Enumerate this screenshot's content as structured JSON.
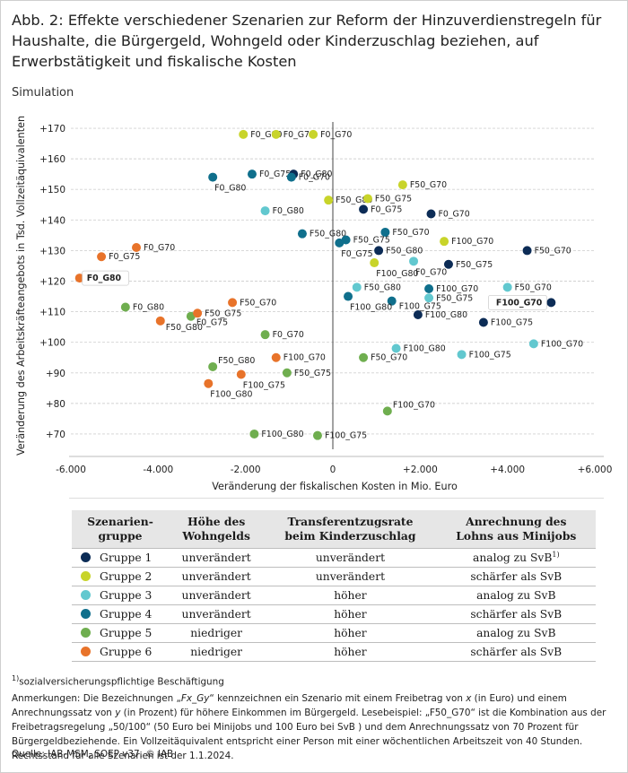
{
  "title": "Abb. 2: Effekte verschiedener Szenarien zur Reform der Hinzuverdienstregeln für Haushalte, die Bürgergeld, Wohngeld oder Kinderzuschlag beziehen, auf Erwerbstätigkeit und fiskalische Kosten",
  "subtitle": "Simulation",
  "chart_data": {
    "type": "scatter",
    "xlabel": "Veränderung der fiskalischen Kosten in Mio. Euro",
    "ylabel": "Veränderung des Arbeitskräfteangebots in Tsd. Vollzeitäquivalenten",
    "xlim": [
      -6000,
      6000
    ],
    "ylim": [
      65,
      175
    ],
    "x_ticks": [
      -6000,
      -4000,
      -2000,
      0,
      2000,
      4000,
      6000
    ],
    "x_tick_labels": [
      "-6.000",
      "-4.000",
      "-2.000",
      "0",
      "+2.000",
      "+4.000",
      "+6.000"
    ],
    "y_ticks": [
      70,
      80,
      90,
      100,
      110,
      120,
      130,
      140,
      150,
      160,
      170
    ],
    "y_tick_labels": [
      "+70",
      "+80",
      "+90",
      "+100",
      "+110",
      "+120",
      "+130",
      "+140",
      "+150",
      "+160",
      "+170"
    ],
    "group_colors": {
      "1": "#0c2c56",
      "2": "#c8d42a",
      "3": "#62c8cf",
      "4": "#0f6f8c",
      "5": "#6fae4f",
      "6": "#e8732a"
    },
    "points": [
      {
        "label": "F0_G80",
        "group": 1,
        "x": -900,
        "y": 155,
        "pos": "r",
        "box": false
      },
      {
        "label": "F0_G75",
        "group": 1,
        "x": 700,
        "y": 143.5,
        "pos": "r",
        "box": false
      },
      {
        "label": "F0_G70",
        "group": 1,
        "x": 2250,
        "y": 142,
        "pos": "r",
        "box": false
      },
      {
        "label": "F50_G70",
        "group": 1,
        "x": 4450,
        "y": 130,
        "pos": "r",
        "box": false
      },
      {
        "label": "F50_G75",
        "group": 1,
        "x": 2650,
        "y": 125.5,
        "pos": "r",
        "box": false
      },
      {
        "label": "F50_G80",
        "group": 1,
        "x": 1050,
        "y": 130,
        "pos": "r",
        "box": false
      },
      {
        "label": "F100_G70",
        "group": 1,
        "x": 5000,
        "y": 113,
        "pos": "l",
        "box": true
      },
      {
        "label": "F100_G75",
        "group": 1,
        "x": 3450,
        "y": 106.5,
        "pos": "r",
        "box": false
      },
      {
        "label": "F100_G80",
        "group": 1,
        "x": 1950,
        "y": 109,
        "pos": "r",
        "box": false
      },
      {
        "label": "F0_G80",
        "group": 2,
        "x": -2050,
        "y": 168,
        "pos": "r",
        "box": false
      },
      {
        "label": "F0_G75",
        "group": 2,
        "x": -1300,
        "y": 168,
        "pos": "r",
        "box": false
      },
      {
        "label": "F0_G70",
        "group": 2,
        "x": -450,
        "y": 168,
        "pos": "r",
        "box": false
      },
      {
        "label": "F50_G80",
        "group": 2,
        "x": -100,
        "y": 146.5,
        "pos": "r",
        "box": false
      },
      {
        "label": "F50_G75",
        "group": 2,
        "x": 800,
        "y": 147,
        "pos": "r",
        "box": false
      },
      {
        "label": "F50_G70",
        "group": 2,
        "x": 1600,
        "y": 151.5,
        "pos": "r",
        "box": false
      },
      {
        "label": "F100_G70",
        "group": 2,
        "x": 2550,
        "y": 133,
        "pos": "r",
        "box": false
      },
      {
        "label": "F100_G80",
        "group": 2,
        "x": 950,
        "y": 126,
        "pos": "b",
        "box": false
      },
      {
        "label": "F0_G70",
        "group": 3,
        "x": 1850,
        "y": 126.5,
        "pos": "b",
        "box": false
      },
      {
        "label": "F0_G80",
        "group": 3,
        "x": -1550,
        "y": 143,
        "pos": "r",
        "box": false
      },
      {
        "label": "F50_G75",
        "group": 3,
        "x": 2200,
        "y": 114.5,
        "pos": "r",
        "box": false
      },
      {
        "label": "F50_G70",
        "group": 3,
        "x": 4000,
        "y": 118,
        "pos": "r",
        "box": false
      },
      {
        "label": "F50_G80",
        "group": 3,
        "x": 550,
        "y": 118,
        "pos": "r",
        "box": false
      },
      {
        "label": "F100_G70",
        "group": 3,
        "x": 4600,
        "y": 99.5,
        "pos": "r",
        "box": false
      },
      {
        "label": "F100_G75",
        "group": 3,
        "x": 2950,
        "y": 96,
        "pos": "r",
        "box": false
      },
      {
        "label": "F100_G80",
        "group": 3,
        "x": 1450,
        "y": 98,
        "pos": "r",
        "box": false
      },
      {
        "label": "F0_G75",
        "group": 4,
        "x": -1850,
        "y": 155,
        "pos": "r",
        "box": false
      },
      {
        "label": "F0_G80",
        "group": 4,
        "x": -2750,
        "y": 154,
        "pos": "b",
        "box": false
      },
      {
        "label": "F0_G70",
        "group": 4,
        "x": -950,
        "y": 154,
        "pos": "r",
        "box": false
      },
      {
        "label": "F50_G80",
        "group": 4,
        "x": -700,
        "y": 135.5,
        "pos": "r",
        "box": false
      },
      {
        "label": "F50_G75",
        "group": 4,
        "x": 300,
        "y": 133.5,
        "pos": "r",
        "box": false
      },
      {
        "label": "F50_G70",
        "group": 4,
        "x": 1200,
        "y": 136,
        "pos": "r",
        "box": false
      },
      {
        "label": "F0_G75",
        "group": 4,
        "x": 150,
        "y": 132.5,
        "pos": "b",
        "box": false
      },
      {
        "label": "F100_G70",
        "group": 4,
        "x": 2200,
        "y": 117.5,
        "pos": "r",
        "box": false
      },
      {
        "label": "F100_G75",
        "group": 4,
        "x": 1350,
        "y": 113.5,
        "pos": "rb",
        "box": false
      },
      {
        "label": "F100_G80",
        "group": 4,
        "x": 350,
        "y": 115,
        "pos": "b",
        "box": false
      },
      {
        "label": "F0_G80",
        "group": 5,
        "x": -4750,
        "y": 111.5,
        "pos": "r",
        "box": false
      },
      {
        "label": "F0_G75",
        "group": 5,
        "x": -3250,
        "y": 108.5,
        "pos": "br",
        "box": false
      },
      {
        "label": "F0_G70",
        "group": 5,
        "x": -1550,
        "y": 102.5,
        "pos": "r",
        "box": false
      },
      {
        "label": "F50_G80",
        "group": 5,
        "x": -2750,
        "y": 92,
        "pos": "tr",
        "box": false
      },
      {
        "label": "F50_G75",
        "group": 5,
        "x": -1050,
        "y": 90,
        "pos": "r",
        "box": false
      },
      {
        "label": "F50_G70",
        "group": 5,
        "x": 700,
        "y": 95,
        "pos": "r",
        "box": false
      },
      {
        "label": "F100_G70",
        "group": 5,
        "x": 1250,
        "y": 77.5,
        "pos": "tr",
        "box": false
      },
      {
        "label": "F100_G80",
        "group": 5,
        "x": -1800,
        "y": 70,
        "pos": "r",
        "box": false
      },
      {
        "label": "F100_G75",
        "group": 5,
        "x": -350,
        "y": 69.5,
        "pos": "r",
        "box": false
      },
      {
        "label": "F0_G80",
        "group": 6,
        "x": -5800,
        "y": 121,
        "pos": "r",
        "box": true
      },
      {
        "label": "F0_G75",
        "group": 6,
        "x": -5300,
        "y": 128,
        "pos": "r",
        "box": false
      },
      {
        "label": "F0_G70",
        "group": 6,
        "x": -4500,
        "y": 131,
        "pos": "r",
        "box": false
      },
      {
        "label": "F50_G70",
        "group": 6,
        "x": -2300,
        "y": 113,
        "pos": "r",
        "box": false
      },
      {
        "label": "F50_G75",
        "group": 6,
        "x": -3100,
        "y": 109.5,
        "pos": "r",
        "box": false
      },
      {
        "label": "F50_G80",
        "group": 6,
        "x": -3950,
        "y": 107,
        "pos": "br",
        "box": false
      },
      {
        "label": "F100_G70",
        "group": 6,
        "x": -1300,
        "y": 95,
        "pos": "r",
        "box": false
      },
      {
        "label": "F100_G75",
        "group": 6,
        "x": -2100,
        "y": 89.5,
        "pos": "b",
        "box": false
      },
      {
        "label": "F100_G80",
        "group": 6,
        "x": -2850,
        "y": 86.5,
        "pos": "b",
        "box": false
      }
    ]
  },
  "table": {
    "headers": [
      "Szenarien-\ngruppe",
      "Höhe des\nWohngelds",
      "Transferentzugsrate\nbeim Kinderzuschlag",
      "Anrechnung des\nLohns aus Minijobs"
    ],
    "rows": [
      {
        "group": "Gruppe 1",
        "color": "#0c2c56",
        "wohngeld": "unverändert",
        "kiz": "unverändert",
        "minijob": "analog zu SvB",
        "sup": "1)"
      },
      {
        "group": "Gruppe 2",
        "color": "#c8d42a",
        "wohngeld": "unverändert",
        "kiz": "unverändert",
        "minijob": "schärfer als SvB",
        "sup": ""
      },
      {
        "group": "Gruppe 3",
        "color": "#62c8cf",
        "wohngeld": "unverändert",
        "kiz": "höher",
        "minijob": "analog zu SvB",
        "sup": ""
      },
      {
        "group": "Gruppe 4",
        "color": "#0f6f8c",
        "wohngeld": "unverändert",
        "kiz": "höher",
        "minijob": "schärfer als SvB",
        "sup": ""
      },
      {
        "group": "Gruppe 5",
        "color": "#6fae4f",
        "wohngeld": "niedriger",
        "kiz": "höher",
        "minijob": "analog zu SvB",
        "sup": ""
      },
      {
        "group": "Gruppe 6",
        "color": "#e8732a",
        "wohngeld": "niedriger",
        "kiz": "höher",
        "minijob": "schärfer als SvB",
        "sup": ""
      }
    ]
  },
  "footnote": {
    "marker": "1)",
    "text": "sozialversicherungspflichtige Beschäftigung"
  },
  "notes": {
    "t1": "Anmerkungen: Die Bezeichnungen „",
    "fx": "Fx_Gy",
    "t2": "“ kennzeichnen ein Szenario mit einem Freibetrag von ",
    "x": "x",
    "t3": " (in Euro) und einem Anrechnungssatz von ",
    "y": "y",
    "t4": " (in Prozent) für höhere Einkommen im Bürgergeld. Lesebeispiel: „F50_G70“ ist die Kombination aus der Freibetragsregelung „50/100“ (50 Euro bei Minijobs und 100 Euro bei SvB ) und dem Anrechnungssatz von 70 Prozent für Bürgergeldbeziehende. Ein Vollzeitäquivalent entspricht einer Person mit einer wöchentlichen Arbeitszeit von 40 Stunden. Rechtsstand für alle Szenarien ist der 1.1.2024."
  },
  "source": "Quelle: IAB-MSM, SOEP v37.  © IAB"
}
